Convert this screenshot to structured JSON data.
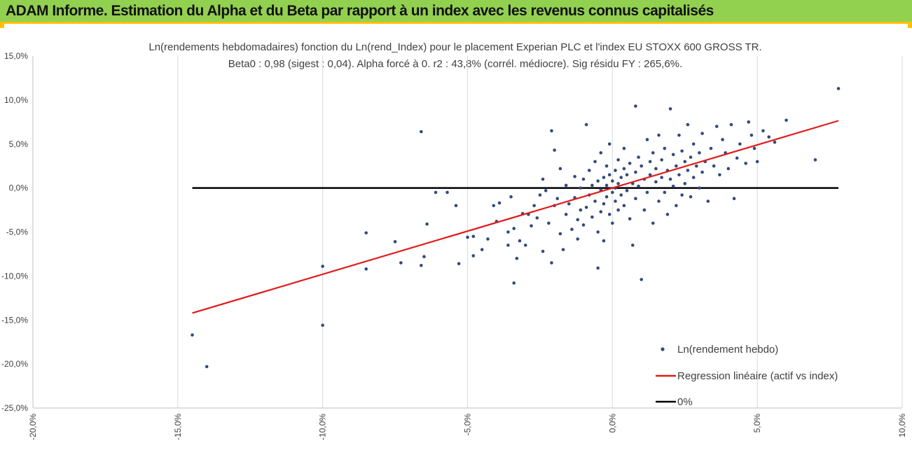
{
  "header": {
    "title": "ADAM Informe. Estimation du Alpha et du Beta par rapport à un index avec les revenus connus capitalisés"
  },
  "chart_data": {
    "type": "scatter",
    "title_line1": "Ln(rendements hebdomadaires) fonction du Ln(rend_Index) pour le placement Experian PLC et l'index EU STOXX 600 GROSS TR.",
    "title_line2": "Beta0 : 0,98  (sigest : 0,04).  Alpha forcé à 0. r2 : 43,8% (corrél. médiocre). Sig résidu FY : 265,6%.",
    "xlabel": "",
    "ylabel": "",
    "xlim": [
      -0.2,
      0.1
    ],
    "ylim": [
      -0.25,
      0.15
    ],
    "x_ticks": [
      -0.2,
      -0.15,
      -0.1,
      -0.05,
      0.0,
      0.05,
      0.1
    ],
    "x_tick_labels": [
      "-20,0%",
      "-15,0%",
      "-10,0%",
      "-5,0%",
      "0,0%",
      "5,0%",
      "10,0%"
    ],
    "y_ticks": [
      0.15,
      0.1,
      0.05,
      0.0,
      -0.05,
      -0.1,
      -0.15,
      -0.2,
      -0.25
    ],
    "y_tick_labels": [
      "15,0%",
      "10,0%",
      "5,0%",
      "0,0%",
      "-5,0%",
      "-10,0%",
      "-15,0%",
      "-20,0%",
      "-25,0%"
    ],
    "grid": "vertical",
    "legend_position": "bottom-right",
    "colors": {
      "points": "#2f4b7c",
      "regression": "#e31a1c",
      "zero": "#000000",
      "grid": "#d9d9d9"
    },
    "series": [
      {
        "name": "Ln(rendement hebdo)",
        "kind": "scatter",
        "points": [
          [
            -0.145,
            -0.167
          ],
          [
            -0.14,
            -0.203
          ],
          [
            -0.1,
            -0.156
          ],
          [
            -0.1,
            -0.089
          ],
          [
            -0.085,
            -0.092
          ],
          [
            -0.085,
            -0.051
          ],
          [
            -0.075,
            -0.061
          ],
          [
            -0.073,
            -0.085
          ],
          [
            -0.066,
            0.064
          ],
          [
            -0.066,
            -0.088
          ],
          [
            -0.065,
            -0.078
          ],
          [
            -0.064,
            -0.041
          ],
          [
            -0.061,
            -0.005
          ],
          [
            -0.057,
            -0.005
          ],
          [
            -0.054,
            -0.02
          ],
          [
            -0.053,
            -0.086
          ],
          [
            -0.05,
            -0.056
          ],
          [
            -0.048,
            -0.055
          ],
          [
            -0.048,
            -0.077
          ],
          [
            -0.045,
            -0.07
          ],
          [
            -0.043,
            -0.058
          ],
          [
            -0.041,
            -0.02
          ],
          [
            -0.04,
            -0.038
          ],
          [
            -0.039,
            -0.017
          ],
          [
            -0.036,
            -0.065
          ],
          [
            -0.036,
            -0.05
          ],
          [
            -0.035,
            -0.01
          ],
          [
            -0.034,
            -0.046
          ],
          [
            -0.034,
            -0.108
          ],
          [
            -0.033,
            -0.08
          ],
          [
            -0.032,
            -0.06
          ],
          [
            -0.031,
            -0.029
          ],
          [
            -0.03,
            -0.065
          ],
          [
            -0.029,
            -0.03
          ],
          [
            -0.028,
            -0.043
          ],
          [
            -0.027,
            -0.02
          ],
          [
            -0.026,
            -0.034
          ],
          [
            -0.025,
            -0.008
          ],
          [
            -0.024,
            -0.072
          ],
          [
            -0.024,
            0.01
          ],
          [
            -0.023,
            -0.003
          ],
          [
            -0.022,
            -0.04
          ],
          [
            -0.021,
            0.065
          ],
          [
            -0.021,
            -0.085
          ],
          [
            -0.02,
            -0.02
          ],
          [
            -0.02,
            0.043
          ],
          [
            -0.019,
            -0.012
          ],
          [
            -0.018,
            -0.052
          ],
          [
            -0.018,
            0.022
          ],
          [
            -0.017,
            -0.07
          ],
          [
            -0.016,
            -0.03
          ],
          [
            -0.016,
            0.003
          ],
          [
            -0.015,
            -0.018
          ],
          [
            -0.014,
            -0.047
          ],
          [
            -0.013,
            -0.011
          ],
          [
            -0.013,
            0.013
          ],
          [
            -0.012,
            -0.036
          ],
          [
            -0.012,
            -0.058
          ],
          [
            -0.011,
            0.0
          ],
          [
            -0.011,
            -0.025
          ],
          [
            -0.01,
            0.01
          ],
          [
            -0.01,
            -0.042
          ],
          [
            -0.009,
            0.072
          ],
          [
            -0.009,
            -0.022
          ],
          [
            -0.008,
            -0.008
          ],
          [
            -0.008,
            0.02
          ],
          [
            -0.007,
            -0.033
          ],
          [
            -0.007,
            0.003
          ],
          [
            -0.006,
            -0.015
          ],
          [
            -0.006,
            0.03
          ],
          [
            -0.005,
            -0.05
          ],
          [
            -0.005,
            0.008
          ],
          [
            -0.005,
            -0.091
          ],
          [
            -0.004,
            -0.002
          ],
          [
            -0.004,
            -0.027
          ],
          [
            -0.004,
            0.04
          ],
          [
            -0.003,
            0.012
          ],
          [
            -0.003,
            -0.018
          ],
          [
            -0.003,
            -0.06
          ],
          [
            -0.002,
            0.003
          ],
          [
            -0.002,
            0.025
          ],
          [
            -0.002,
            -0.01
          ],
          [
            -0.001,
            -0.03
          ],
          [
            -0.001,
            0.015
          ],
          [
            -0.001,
            0.05
          ],
          [
            0.0,
            -0.005
          ],
          [
            0.0,
            0.008
          ],
          [
            0.0,
            -0.04
          ],
          [
            0.001,
            0.02
          ],
          [
            0.001,
            0.0
          ],
          [
            0.001,
            -0.015
          ],
          [
            0.002,
            0.032
          ],
          [
            0.002,
            -0.025
          ],
          [
            0.002,
            0.005
          ],
          [
            0.003,
            0.012
          ],
          [
            0.003,
            -0.008
          ],
          [
            0.004,
            0.045
          ],
          [
            0.004,
            -0.02
          ],
          [
            0.004,
            0.022
          ],
          [
            0.005,
            -0.003
          ],
          [
            0.005,
            0.015
          ],
          [
            0.006,
            -0.035
          ],
          [
            0.006,
            0.028
          ],
          [
            0.007,
            0.005
          ],
          [
            0.007,
            -0.065
          ],
          [
            0.008,
            0.093
          ],
          [
            0.008,
            0.018
          ],
          [
            0.008,
            -0.012
          ],
          [
            0.009,
            0.035
          ],
          [
            0.009,
            0.002
          ],
          [
            0.01,
            -0.104
          ],
          [
            0.01,
            0.025
          ],
          [
            0.011,
            -0.025
          ],
          [
            0.011,
            0.01
          ],
          [
            0.012,
            0.055
          ],
          [
            0.012,
            -0.005
          ],
          [
            0.013,
            0.03
          ],
          [
            0.013,
            0.015
          ],
          [
            0.014,
            -0.04
          ],
          [
            0.014,
            0.04
          ],
          [
            0.015,
            0.007
          ],
          [
            0.015,
            0.022
          ],
          [
            0.016,
            -0.015
          ],
          [
            0.016,
            0.06
          ],
          [
            0.017,
            0.012
          ],
          [
            0.017,
            0.032
          ],
          [
            0.018,
            -0.005
          ],
          [
            0.018,
            0.045
          ],
          [
            0.019,
            0.02
          ],
          [
            0.019,
            -0.03
          ],
          [
            0.02,
            0.09
          ],
          [
            0.02,
            0.01
          ],
          [
            0.021,
            0.038
          ],
          [
            0.021,
            0.002
          ],
          [
            0.022,
            -0.02
          ],
          [
            0.022,
            0.025
          ],
          [
            0.023,
            0.06
          ],
          [
            0.023,
            0.015
          ],
          [
            0.024,
            -0.008
          ],
          [
            0.024,
            0.042
          ],
          [
            0.025,
            0.03
          ],
          [
            0.025,
            0.005
          ],
          [
            0.026,
            0.02
          ],
          [
            0.026,
            0.072
          ],
          [
            0.027,
            -0.01
          ],
          [
            0.027,
            0.035
          ],
          [
            0.028,
            0.012
          ],
          [
            0.028,
            0.05
          ],
          [
            0.029,
            0.025
          ],
          [
            0.03,
            0.0
          ],
          [
            0.03,
            0.04
          ],
          [
            0.031,
            0.062
          ],
          [
            0.031,
            0.018
          ],
          [
            0.032,
            0.03
          ],
          [
            0.033,
            -0.015
          ],
          [
            0.034,
            0.045
          ],
          [
            0.035,
            0.025
          ],
          [
            0.036,
            0.07
          ],
          [
            0.037,
            0.015
          ],
          [
            0.038,
            0.055
          ],
          [
            0.039,
            0.04
          ],
          [
            0.04,
            0.022
          ],
          [
            0.041,
            0.072
          ],
          [
            0.042,
            -0.012
          ],
          [
            0.043,
            0.034
          ],
          [
            0.044,
            0.05
          ],
          [
            0.046,
            0.028
          ],
          [
            0.047,
            0.075
          ],
          [
            0.048,
            0.06
          ],
          [
            0.049,
            0.045
          ],
          [
            0.05,
            0.03
          ],
          [
            0.052,
            0.065
          ],
          [
            0.054,
            0.058
          ],
          [
            0.056,
            0.052
          ],
          [
            0.06,
            0.077
          ],
          [
            0.07,
            0.032
          ],
          [
            0.078,
            0.113
          ]
        ]
      },
      {
        "name": "Regression linéaire (actif vs index)",
        "kind": "line",
        "beta": 0.98,
        "x_range": [
          -0.145,
          0.078
        ]
      },
      {
        "name": "0%",
        "kind": "line",
        "y": 0.0,
        "x_range": [
          -0.145,
          0.078
        ]
      }
    ]
  }
}
